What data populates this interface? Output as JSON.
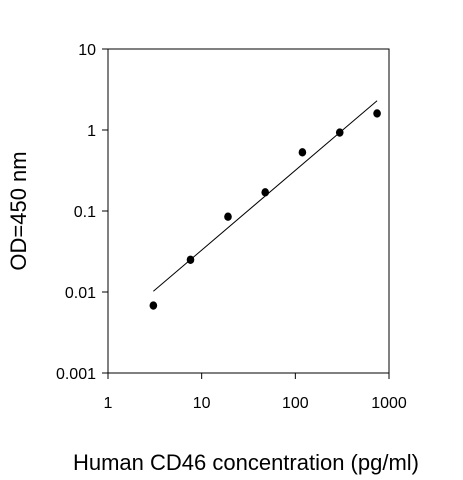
{
  "chart_data": {
    "type": "scatter",
    "title": "",
    "xlabel": "Human CD46 concentration (pg/ml)",
    "ylabel": "OD=450 nm",
    "x_scale": "log",
    "y_scale": "log",
    "xlim": [
      1,
      1000
    ],
    "ylim": [
      0.001,
      10
    ],
    "x_ticks": [
      1,
      10,
      100,
      1000
    ],
    "x_tick_labels": [
      "1",
      "10",
      "100",
      "1000"
    ],
    "y_ticks": [
      0.001,
      0.01,
      0.1,
      1,
      10
    ],
    "y_tick_labels": [
      "0.001",
      "0.01",
      "0.1",
      "1",
      "10"
    ],
    "grid": false,
    "legend": "none",
    "series": [
      {
        "x": [
          3.05,
          7.6,
          19.1,
          47.7,
          119,
          298,
          746
        ],
        "y": [
          0.0068,
          0.025,
          0.085,
          0.17,
          0.53,
          0.93,
          1.6
        ]
      }
    ],
    "fit_line": {
      "x": [
        3.05,
        746
      ],
      "y": [
        0.0102,
        2.3
      ]
    },
    "colors": {
      "points": "#000000",
      "line": "#000000",
      "axes": "#000000"
    }
  }
}
